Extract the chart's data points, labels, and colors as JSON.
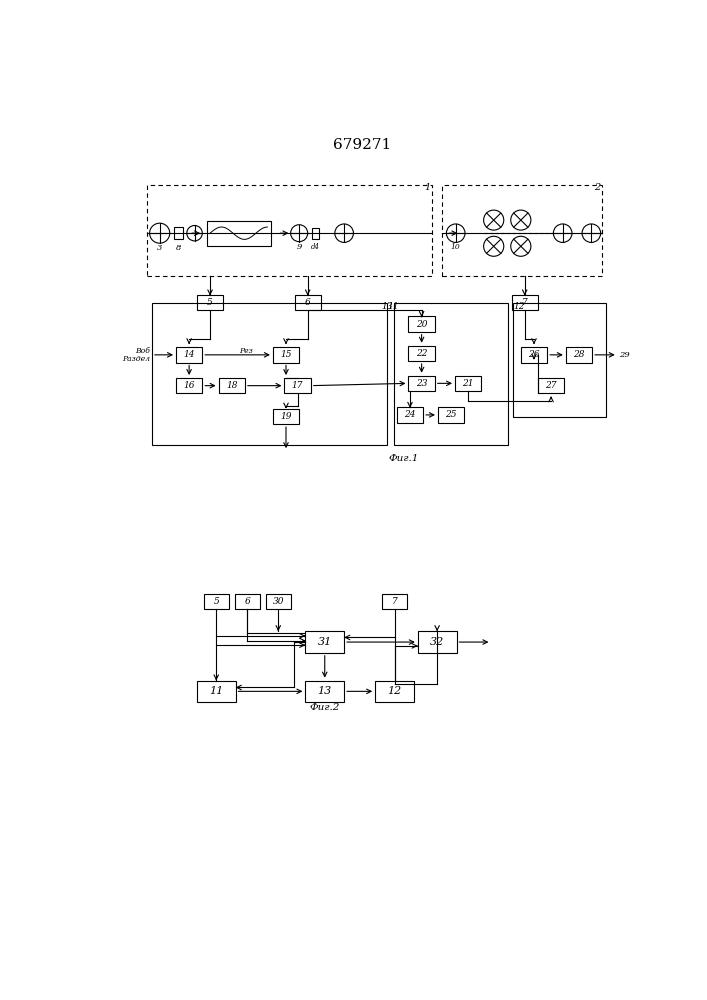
{
  "title": "679271",
  "bg": "#ffffff",
  "fig1_caption": "Фиг.1",
  "fig2_caption": "Фиг.2",
  "Vob_label": "Воб",
  "Razdel_label": "Раздел",
  "Rez_label": "Рез",
  "out29_label": "29"
}
